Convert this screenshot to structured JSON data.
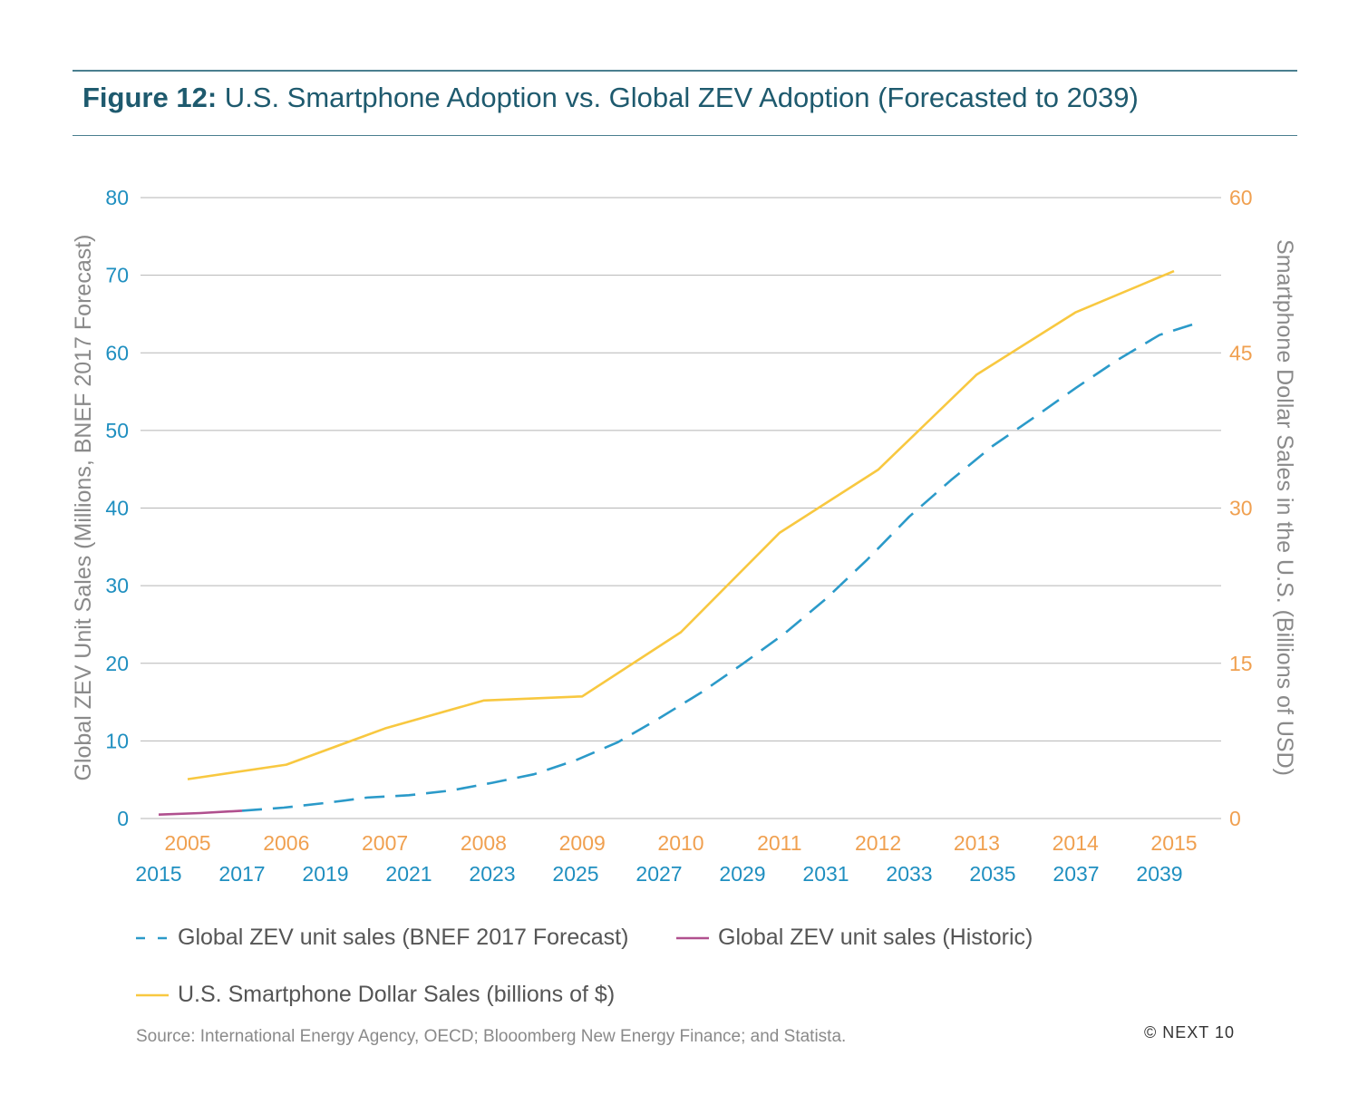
{
  "title": {
    "figure_label": "Figure 12:",
    "text": "U.S. Smartphone Adoption vs. Global ZEV Adoption (Forecasted to 2039)"
  },
  "colors": {
    "forecast": "#2b9ac9",
    "historic": "#b0508e",
    "smartphone": "#f8c840",
    "left_axis": "#1f8fc0",
    "right_axis": "#f0a050",
    "axis_title": "#8a8a8a",
    "grid": "#b5b5b5",
    "title": "#1e5a6e"
  },
  "chart_data": {
    "type": "line",
    "title": "U.S. Smartphone Adoption vs. Global ZEV Adoption (Forecasted to 2039)",
    "ylabel_left": "Global ZEV Unit Sales (Millions, BNEF 2017 Forecast)",
    "ylabel_right": "Smartphone Dollar Sales in the U.S. (Billions of USD)",
    "ylim_left": [
      0,
      80
    ],
    "ylim_right": [
      0,
      60
    ],
    "yticks_left": [
      "0",
      "10",
      "20",
      "30",
      "40",
      "50",
      "60",
      "70",
      "80"
    ],
    "yticks_right": [
      "0",
      "15",
      "30",
      "45",
      "60"
    ],
    "xticks_top": [
      "2005",
      "2006",
      "2007",
      "2008",
      "2009",
      "2010",
      "2011",
      "2012",
      "2013",
      "2014",
      "2015"
    ],
    "xticks_bottom": [
      "2015",
      "2017",
      "2019",
      "2021",
      "2023",
      "2025",
      "2027",
      "2029",
      "2031",
      "2033",
      "2035",
      "2037",
      "2039"
    ],
    "grid": true,
    "legend_position": "bottom",
    "series": [
      {
        "name": "U.S. Smartphone Dollar Sales (billions of $)",
        "axis": "right",
        "style": "solid",
        "x": [
          "2005",
          "2006",
          "2007",
          "2008",
          "2009",
          "2010",
          "2011",
          "2012",
          "2013",
          "2014",
          "2015"
        ],
        "values": [
          3.8,
          5.2,
          8.7,
          11.4,
          11.8,
          18.0,
          27.6,
          33.7,
          42.9,
          48.9,
          52.9
        ]
      },
      {
        "name": "Global ZEV unit sales (BNEF 2017 Forecast)",
        "axis": "left",
        "style": "dashed",
        "x": [
          2017,
          2018,
          2019,
          2020,
          2021,
          2022,
          2023,
          2024,
          2025,
          2026,
          2027,
          2028,
          2029,
          2030,
          2031,
          2032,
          2033,
          2034,
          2035,
          2036,
          2037,
          2038,
          2039,
          2040
        ],
        "values": [
          1.0,
          1.4,
          2.0,
          2.7,
          3.0,
          3.6,
          4.6,
          5.7,
          7.5,
          9.8,
          12.9,
          16.2,
          19.9,
          23.8,
          28.3,
          33.4,
          38.9,
          43.6,
          48.0,
          51.7,
          55.5,
          59.1,
          62.3,
          64.0
        ]
      },
      {
        "name": "Global ZEV unit sales (Historic)",
        "axis": "left",
        "style": "solid",
        "x": [
          2015,
          2016,
          2017
        ],
        "values": [
          0.5,
          0.7,
          1.0
        ]
      }
    ]
  },
  "legend": [
    {
      "label": "Global ZEV unit sales (BNEF 2017 Forecast)",
      "style": "dashed",
      "color": "#2b9ac9"
    },
    {
      "label": "Global ZEV unit sales (Historic)",
      "style": "solid",
      "color": "#b0508e"
    },
    {
      "label": "U.S. Smartphone Dollar Sales (billions of $)",
      "style": "solid",
      "color": "#f8c840"
    }
  ],
  "source": "Source: International Energy Agency, OECD; Blooomberg New Energy Finance; and Statista.",
  "copyright": "© NEXT 10"
}
